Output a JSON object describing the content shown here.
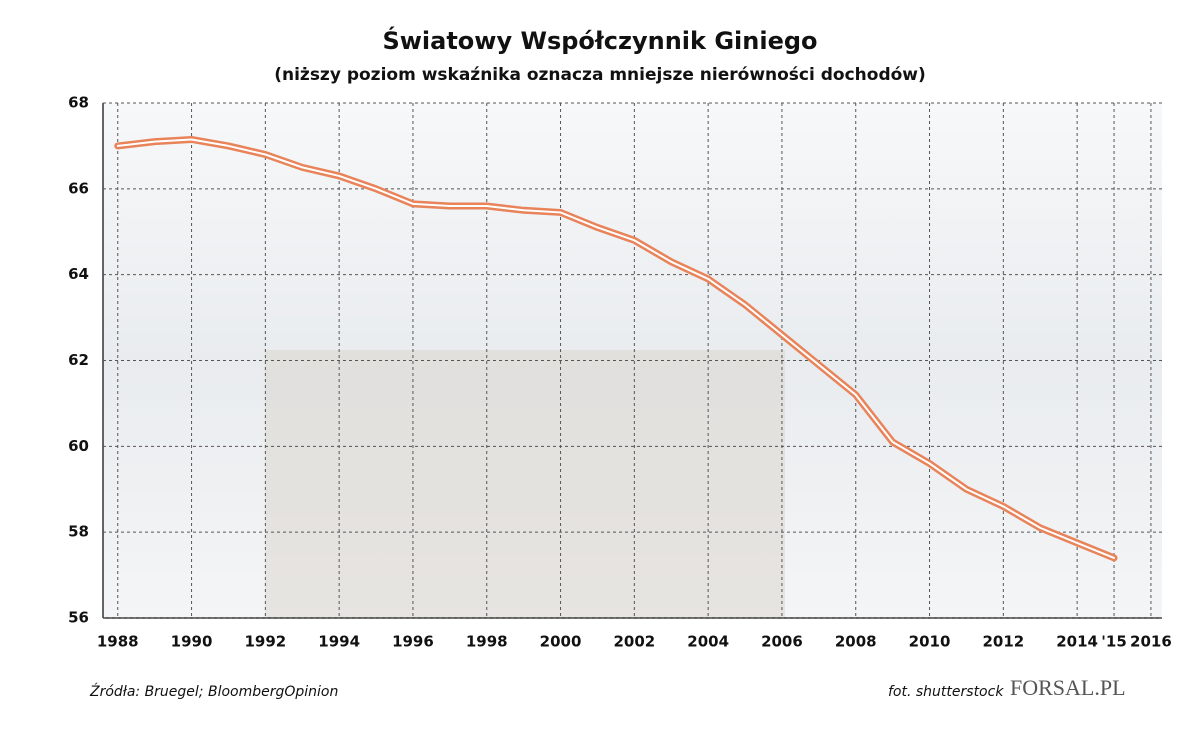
{
  "chart_data": {
    "type": "line",
    "title": "Światowy Współczynnik Giniego",
    "subtitle": "(niższy poziom wskaźnika oznacza mniejsze nierówności dochodów)",
    "source": "Źródła: Bruegel; BloombergOpinion",
    "photo_credit": "fot. shutterstock",
    "logo": "FORSAL.PL",
    "x": [
      1988,
      1989,
      1990,
      1991,
      1992,
      1993,
      1994,
      1995,
      1996,
      1997,
      1998,
      1999,
      2000,
      2001,
      2002,
      2003,
      2004,
      2005,
      2006,
      2007,
      2008,
      2009,
      2010,
      2011,
      2012,
      2013,
      2014,
      2015
    ],
    "series": [
      {
        "name": "Współczynnik Giniego",
        "color": "#e8835a",
        "values": [
          67.0,
          67.1,
          67.15,
          67.0,
          66.8,
          66.5,
          66.3,
          66.0,
          65.65,
          65.6,
          65.6,
          65.5,
          65.45,
          65.1,
          64.8,
          64.3,
          63.9,
          63.3,
          62.6,
          61.9,
          61.2,
          60.1,
          59.6,
          59.0,
          58.6,
          58.1,
          57.75,
          57.4
        ]
      }
    ],
    "xlim": [
      1987.6,
      2016.3
    ],
    "xticks": [
      1988,
      1990,
      1992,
      1994,
      1996,
      1998,
      2000,
      2002,
      2004,
      2006,
      2008,
      2010,
      2012,
      2014,
      {
        "value": 2015,
        "label": "'15"
      },
      2016
    ],
    "ylim": [
      56,
      68
    ],
    "yticks": [
      56,
      58,
      60,
      62,
      64,
      66,
      68
    ],
    "grid": true
  }
}
